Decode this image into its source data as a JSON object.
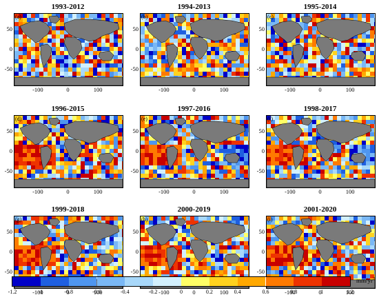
{
  "figure": {
    "panels": [
      {
        "title": "1993-2012",
        "label": "(a)",
        "pattern": "a"
      },
      {
        "title": "1994-2013",
        "label": "(b)",
        "pattern": "b"
      },
      {
        "title": "1995-2014",
        "label": "(c)",
        "pattern": "c"
      },
      {
        "title": "1996-2015",
        "label": "(d)",
        "pattern": "d"
      },
      {
        "title": "1997-2016",
        "label": "(e)",
        "pattern": "e"
      },
      {
        "title": "1998-2017",
        "label": "(f)",
        "pattern": "f"
      },
      {
        "title": "1999-2018",
        "label": "(g)",
        "pattern": "g"
      },
      {
        "title": "2000-2019",
        "label": "(h)",
        "pattern": "h"
      },
      {
        "title": "2001-2020",
        "label": "(i)",
        "pattern": "i"
      }
    ],
    "y_ticks": [
      "50",
      "0",
      "-50"
    ],
    "x_ticks": [
      "-100",
      "0",
      "100"
    ],
    "colorbar": {
      "ticks": [
        "-1.2",
        "-1",
        "-0.8",
        "-0.6",
        "-0.4",
        "-0.2",
        "0",
        "0.2",
        "0.4",
        "0.6",
        "0.8",
        "1",
        "1.2"
      ],
      "colors": [
        "#0000c8",
        "#1f5fe0",
        "#4f96ef",
        "#7ab8f5",
        "#a8d8fa",
        "#d2f0fd",
        "#ffff66",
        "#ffd21f",
        "#ffa800",
        "#ff7a00",
        "#ee3300",
        "#c80000"
      ],
      "units_text": "mm/yr",
      "units_sup": "2"
    },
    "land_color": "#7a7a7a"
  }
}
